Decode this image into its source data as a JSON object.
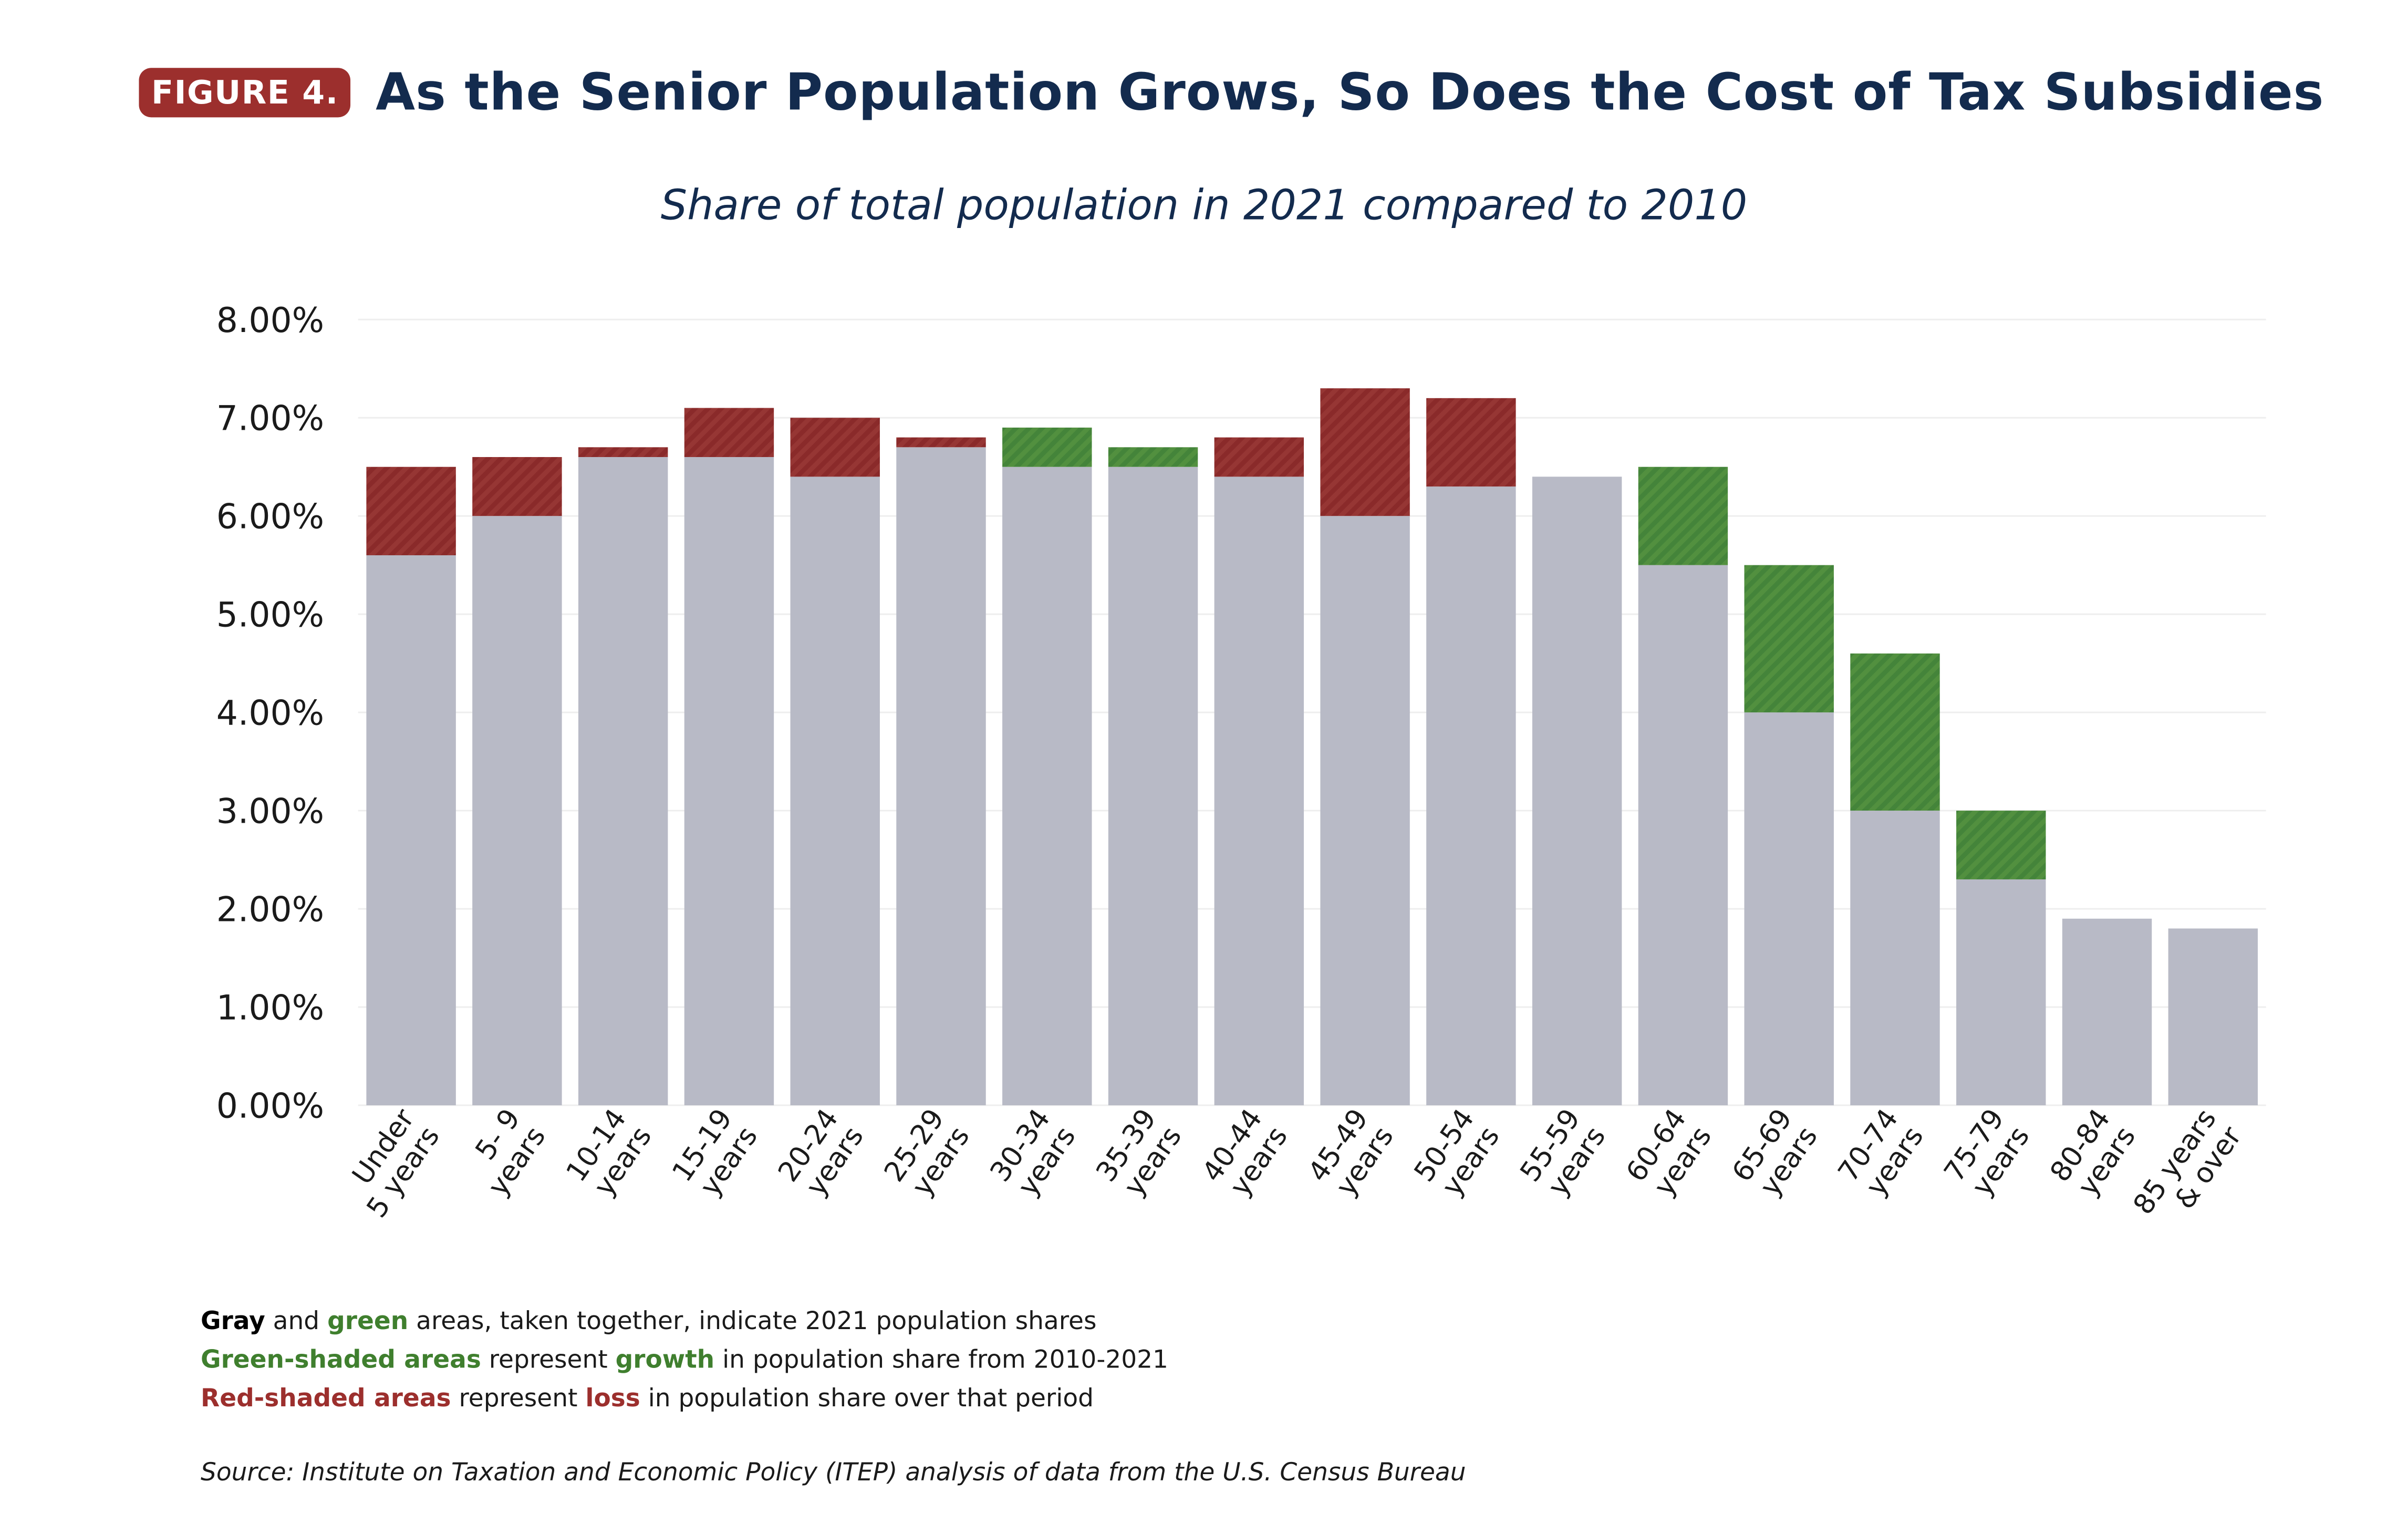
{
  "header": {
    "badge": "FIGURE 4.",
    "title": "As the Senior Population Grows, So Does the Cost of Tax Subsidies"
  },
  "colors": {
    "gray": "#b8bac6",
    "green": "#4a8a3a",
    "red": "#963634",
    "title": "#132b4e"
  },
  "chart_data": {
    "type": "bar",
    "title": "Share of total population in 2021 compared to 2010",
    "ylim": [
      0,
      8
    ],
    "yticks": [
      "0.00%",
      "1.00%",
      "2.00%",
      "3.00%",
      "4.00%",
      "5.00%",
      "6.00%",
      "7.00%",
      "8.00%"
    ],
    "categories": [
      [
        "Under",
        "5 years"
      ],
      [
        "5- 9",
        "years"
      ],
      [
        "10-14",
        "years"
      ],
      [
        "15-19",
        "years"
      ],
      [
        "20-24",
        "years"
      ],
      [
        "25-29",
        "years"
      ],
      [
        "30-34",
        "years"
      ],
      [
        "35-39",
        "years"
      ],
      [
        "40-44",
        "years"
      ],
      [
        "45-49",
        "years"
      ],
      [
        "50-54",
        "years"
      ],
      [
        "55-59",
        "years"
      ],
      [
        "60-64",
        "years"
      ],
      [
        "65-69",
        "years"
      ],
      [
        "70-74",
        "years"
      ],
      [
        "75-79",
        "years"
      ],
      [
        "80-84",
        "years"
      ],
      [
        "85 years",
        "& over"
      ]
    ],
    "series": [
      {
        "name": "2021 share",
        "values": [
          5.6,
          6.0,
          6.6,
          6.6,
          6.4,
          6.7,
          6.9,
          6.7,
          6.4,
          6.0,
          6.3,
          6.4,
          6.5,
          5.5,
          4.6,
          3.0,
          1.9,
          1.8
        ]
      },
      {
        "name": "2010 share",
        "values": [
          6.5,
          6.6,
          6.7,
          7.1,
          7.0,
          6.8,
          6.5,
          6.5,
          6.8,
          7.3,
          7.2,
          6.4,
          5.5,
          4.0,
          3.0,
          2.3,
          1.9,
          1.8
        ]
      }
    ]
  },
  "notes": {
    "l1": {
      "a": "Gray",
      "b": " and ",
      "c": "green",
      "d": " areas, taken together, indicate 2021 population shares"
    },
    "l2": {
      "a": "Green-shaded areas",
      "b": " represent ",
      "c": "growth",
      "d": " in population share from 2010-2021"
    },
    "l3": {
      "a": "Red-shaded areas",
      "b": " represent ",
      "c": "loss",
      "d": " in population share over that period"
    }
  },
  "source": "Source: Institute on Taxation and Economic Policy (ITEP) analysis of data from the U.S. Census Bureau"
}
